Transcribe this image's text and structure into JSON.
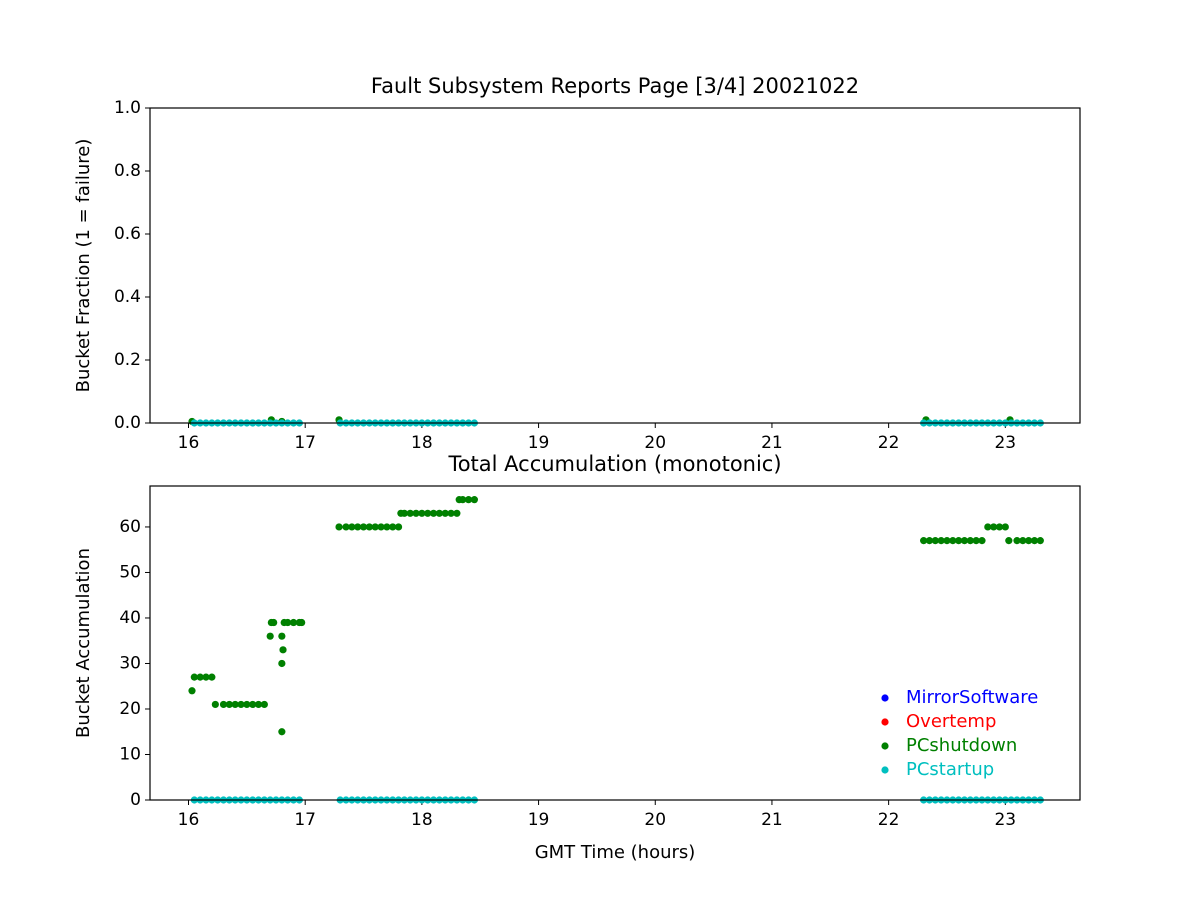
{
  "chart_data": [
    {
      "type": "scatter",
      "title": "Fault Subsystem Reports Page [3/4] 20021022",
      "ylabel": "Bucket Fraction (1 = failure)",
      "xlim": [
        15.67,
        23.64
      ],
      "ylim": [
        0,
        1
      ],
      "xticks": [
        16,
        17,
        18,
        19,
        20,
        21,
        22,
        23
      ],
      "yticks": [
        {
          "value": 0,
          "label": "0.0"
        },
        {
          "value": 0.2,
          "label": "0.2"
        },
        {
          "value": 0.4,
          "label": "0.4"
        },
        {
          "value": 0.6,
          "label": "0.6"
        },
        {
          "value": 0.8,
          "label": "0.8"
        },
        {
          "value": 1,
          "label": "1.0"
        }
      ],
      "series": [
        {
          "name": "PCshutdown",
          "color": "#008000",
          "x": [
            16.03,
            16.71,
            16.8,
            17.29,
            22.32,
            23.04
          ],
          "values": [
            0.005,
            0.01,
            0.005,
            0.01,
            0.01,
            0.01
          ]
        },
        {
          "name": "PCstartup",
          "color": "#00bfbf",
          "x": [
            16.05,
            16.1,
            16.15,
            16.2,
            16.25,
            16.3,
            16.35,
            16.4,
            16.45,
            16.5,
            16.55,
            16.6,
            16.65,
            16.7,
            16.75,
            16.8,
            16.85,
            16.9,
            16.95,
            17.3,
            17.35,
            17.4,
            17.45,
            17.5,
            17.55,
            17.6,
            17.65,
            17.7,
            17.75,
            17.8,
            17.85,
            17.9,
            17.95,
            18.0,
            18.05,
            18.1,
            18.15,
            18.2,
            18.25,
            18.3,
            18.35,
            18.4,
            18.45,
            22.3,
            22.35,
            22.4,
            22.45,
            22.5,
            22.55,
            22.6,
            22.65,
            22.7,
            22.75,
            22.8,
            22.85,
            22.9,
            22.95,
            23.0,
            23.05,
            23.1,
            23.15,
            23.2,
            23.25,
            23.3
          ],
          "values": [
            0,
            0,
            0,
            0,
            0,
            0,
            0,
            0,
            0,
            0,
            0,
            0,
            0,
            0,
            0,
            0,
            0,
            0,
            0,
            0,
            0,
            0,
            0,
            0,
            0,
            0,
            0,
            0,
            0,
            0,
            0,
            0,
            0,
            0,
            0,
            0,
            0,
            0,
            0,
            0,
            0,
            0,
            0,
            0,
            0,
            0,
            0,
            0,
            0,
            0,
            0,
            0,
            0,
            0,
            0,
            0,
            0,
            0,
            0,
            0,
            0,
            0,
            0,
            0
          ]
        }
      ]
    },
    {
      "type": "scatter",
      "title": "Total Accumulation (monotonic)",
      "xlabel": "GMT Time (hours)",
      "ylabel": "Bucket Accumulation",
      "xlim": [
        15.67,
        23.64
      ],
      "ylim": [
        0,
        69
      ],
      "xticks": [
        16,
        17,
        18,
        19,
        20,
        21,
        22,
        23
      ],
      "yticks": [
        0,
        10,
        20,
        30,
        40,
        50,
        60
      ],
      "legend": "lower right",
      "series": [
        {
          "name": "MirrorSoftware",
          "color": "#0000ff",
          "x": [],
          "values": []
        },
        {
          "name": "Overtemp",
          "color": "#ff0000",
          "x": [],
          "values": []
        },
        {
          "name": "PCshutdown",
          "color": "#008000",
          "x": [
            16.03,
            16.05,
            16.1,
            16.15,
            16.2,
            16.23,
            16.3,
            16.35,
            16.4,
            16.45,
            16.5,
            16.55,
            16.6,
            16.65,
            16.7,
            16.71,
            16.73,
            16.8,
            16.8,
            16.81,
            16.8,
            16.82,
            16.85,
            16.9,
            16.95,
            16.97,
            17.29,
            17.35,
            17.4,
            17.45,
            17.5,
            17.55,
            17.6,
            17.65,
            17.7,
            17.75,
            17.8,
            17.82,
            17.85,
            17.9,
            17.95,
            18.0,
            18.05,
            18.1,
            18.15,
            18.2,
            18.25,
            18.3,
            18.32,
            18.35,
            18.4,
            18.45,
            22.3,
            22.35,
            22.4,
            22.45,
            22.5,
            22.55,
            22.6,
            22.65,
            22.7,
            22.75,
            22.8,
            22.85,
            22.9,
            22.95,
            23.0,
            23.03,
            23.1,
            23.15,
            23.2,
            23.25,
            23.3
          ],
          "values": [
            24,
            27,
            27,
            27,
            27,
            21,
            21,
            21,
            21,
            21,
            21,
            21,
            21,
            21,
            36,
            39,
            39,
            15,
            30,
            33,
            36,
            39,
            39,
            39,
            39,
            39,
            60,
            60,
            60,
            60,
            60,
            60,
            60,
            60,
            60,
            60,
            60,
            63,
            63,
            63,
            63,
            63,
            63,
            63,
            63,
            63,
            63,
            63,
            66,
            66,
            66,
            66,
            57,
            57,
            57,
            57,
            57,
            57,
            57,
            57,
            57,
            57,
            57,
            60,
            60,
            60,
            60,
            57,
            57,
            57,
            57,
            57,
            57
          ]
        },
        {
          "name": "PCstartup",
          "color": "#00bfbf",
          "x": [
            16.05,
            16.1,
            16.15,
            16.2,
            16.25,
            16.3,
            16.35,
            16.4,
            16.45,
            16.5,
            16.55,
            16.6,
            16.65,
            16.7,
            16.75,
            16.8,
            16.85,
            16.9,
            16.95,
            17.3,
            17.35,
            17.4,
            17.45,
            17.5,
            17.55,
            17.6,
            17.65,
            17.7,
            17.75,
            17.8,
            17.85,
            17.9,
            17.95,
            18.0,
            18.05,
            18.1,
            18.15,
            18.2,
            18.25,
            18.3,
            18.35,
            18.4,
            18.45,
            22.3,
            22.35,
            22.4,
            22.45,
            22.5,
            22.55,
            22.6,
            22.65,
            22.7,
            22.75,
            22.8,
            22.85,
            22.9,
            22.95,
            23.0,
            23.05,
            23.1,
            23.15,
            23.2,
            23.25,
            23.3
          ],
          "values": [
            0,
            0,
            0,
            0,
            0,
            0,
            0,
            0,
            0,
            0,
            0,
            0,
            0,
            0,
            0,
            0,
            0,
            0,
            0,
            0,
            0,
            0,
            0,
            0,
            0,
            0,
            0,
            0,
            0,
            0,
            0,
            0,
            0,
            0,
            0,
            0,
            0,
            0,
            0,
            0,
            0,
            0,
            0,
            0,
            0,
            0,
            0,
            0,
            0,
            0,
            0,
            0,
            0,
            0,
            0,
            0,
            0,
            0,
            0,
            0,
            0,
            0,
            0,
            0
          ]
        }
      ]
    }
  ]
}
